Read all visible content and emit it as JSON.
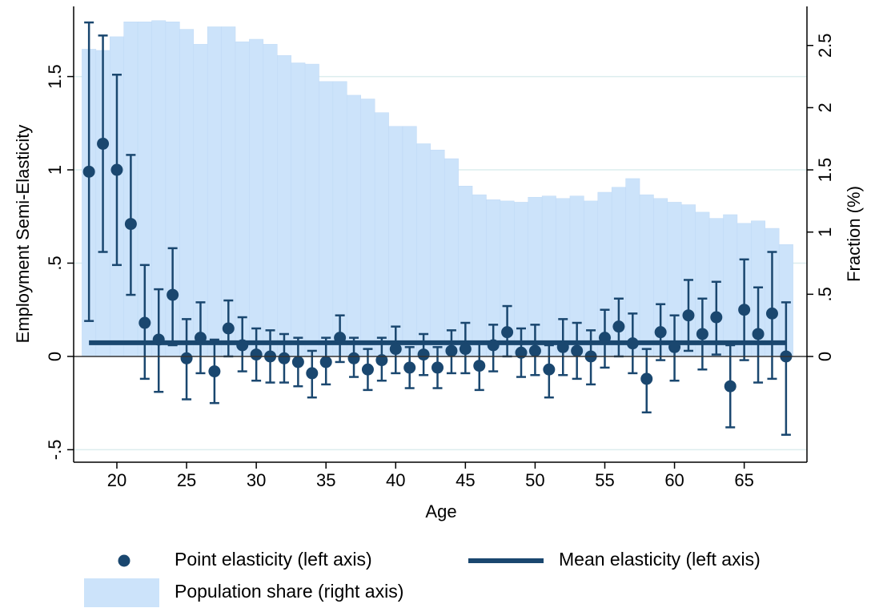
{
  "chart_data": {
    "type": "combo",
    "xlabel": "Age",
    "ylabel": "Employment Semi-Elasticity",
    "y2label": "Fraction (%)",
    "x": [
      18,
      19,
      20,
      21,
      22,
      23,
      24,
      25,
      26,
      27,
      28,
      29,
      30,
      31,
      32,
      33,
      34,
      35,
      36,
      37,
      38,
      39,
      40,
      41,
      42,
      43,
      44,
      45,
      46,
      47,
      48,
      49,
      50,
      51,
      52,
      53,
      54,
      55,
      56,
      57,
      58,
      59,
      60,
      61,
      62,
      63,
      64,
      65,
      66,
      67,
      68
    ],
    "xlim": [
      16.9,
      69.5
    ],
    "xticks": [
      20,
      25,
      30,
      35,
      40,
      45,
      50,
      55,
      60,
      65
    ],
    "ylim": [
      -0.567,
      1.876
    ],
    "yticks": [
      {
        "value": -0.5,
        "label": "-.5"
      },
      0,
      {
        "value": 0.5,
        "label": ".5"
      },
      1,
      {
        "value": 1.5,
        "label": "1.5"
      }
    ],
    "y2lim": [
      -0.85,
      2.814
    ],
    "y2ticks": [
      0,
      {
        "value": 0.5,
        "label": ".5"
      },
      1,
      {
        "value": 1.5,
        "label": "1.5"
      },
      2,
      {
        "value": 2.5,
        "label": "2.5"
      }
    ],
    "grid": true,
    "series": [
      {
        "name": "Population share (right axis)",
        "type": "bar",
        "axis": "y2",
        "color": "#cce3fa",
        "values": [
          2.47,
          2.46,
          2.57,
          2.69,
          2.69,
          2.7,
          2.69,
          2.63,
          2.51,
          2.65,
          2.65,
          2.53,
          2.55,
          2.51,
          2.42,
          2.36,
          2.35,
          2.21,
          2.21,
          2.1,
          2.07,
          1.96,
          1.85,
          1.85,
          1.71,
          1.66,
          1.59,
          1.37,
          1.3,
          1.26,
          1.25,
          1.24,
          1.28,
          1.29,
          1.27,
          1.29,
          1.25,
          1.32,
          1.36,
          1.43,
          1.3,
          1.27,
          1.24,
          1.22,
          1.16,
          1.11,
          1.14,
          1.07,
          1.09,
          1.03,
          0.9
        ]
      },
      {
        "name": "Point elasticity (left axis)",
        "type": "scatter",
        "color": "#1a476f",
        "values": [
          0.99,
          1.14,
          1.0,
          0.71,
          0.18,
          0.09,
          0.33,
          -0.01,
          0.1,
          -0.08,
          0.15,
          0.06,
          0.01,
          0.0,
          -0.01,
          -0.03,
          -0.09,
          -0.03,
          0.1,
          -0.01,
          -0.07,
          -0.02,
          0.04,
          -0.06,
          0.01,
          -0.06,
          0.03,
          0.04,
          -0.05,
          0.06,
          0.13,
          0.02,
          0.03,
          -0.07,
          0.05,
          0.03,
          0.0,
          0.1,
          0.16,
          0.07,
          -0.12,
          0.13,
          0.05,
          0.22,
          0.12,
          0.21,
          -0.16,
          0.25,
          0.12,
          0.23,
          0.0
        ],
        "lower": [
          0.19,
          0.56,
          0.49,
          0.33,
          -0.12,
          -0.19,
          0.06,
          -0.23,
          -0.09,
          -0.25,
          0.0,
          -0.08,
          -0.13,
          -0.14,
          -0.14,
          -0.16,
          -0.22,
          -0.15,
          -0.03,
          -0.11,
          -0.18,
          -0.13,
          -0.09,
          -0.17,
          -0.1,
          -0.17,
          -0.09,
          -0.09,
          -0.18,
          -0.08,
          0.0,
          -0.11,
          -0.1,
          -0.22,
          -0.1,
          -0.12,
          -0.15,
          -0.06,
          0.0,
          -0.09,
          -0.3,
          -0.02,
          -0.13,
          0.03,
          -0.07,
          0.01,
          -0.38,
          -0.02,
          -0.14,
          -0.12,
          -0.42
        ],
        "upper": [
          1.79,
          1.72,
          1.51,
          1.08,
          0.49,
          0.36,
          0.58,
          0.2,
          0.29,
          0.09,
          0.3,
          0.21,
          0.15,
          0.14,
          0.12,
          0.1,
          0.03,
          0.1,
          0.22,
          0.1,
          0.04,
          0.1,
          0.16,
          0.05,
          0.12,
          0.05,
          0.14,
          0.18,
          0.08,
          0.17,
          0.27,
          0.15,
          0.17,
          0.06,
          0.2,
          0.18,
          0.14,
          0.25,
          0.31,
          0.23,
          0.04,
          0.28,
          0.22,
          0.41,
          0.31,
          0.4,
          0.06,
          0.52,
          0.37,
          0.56,
          0.29
        ]
      },
      {
        "name": "Mean elasticity (left axis)",
        "type": "line",
        "color": "#1a476f",
        "value": 0.073
      }
    ]
  }
}
